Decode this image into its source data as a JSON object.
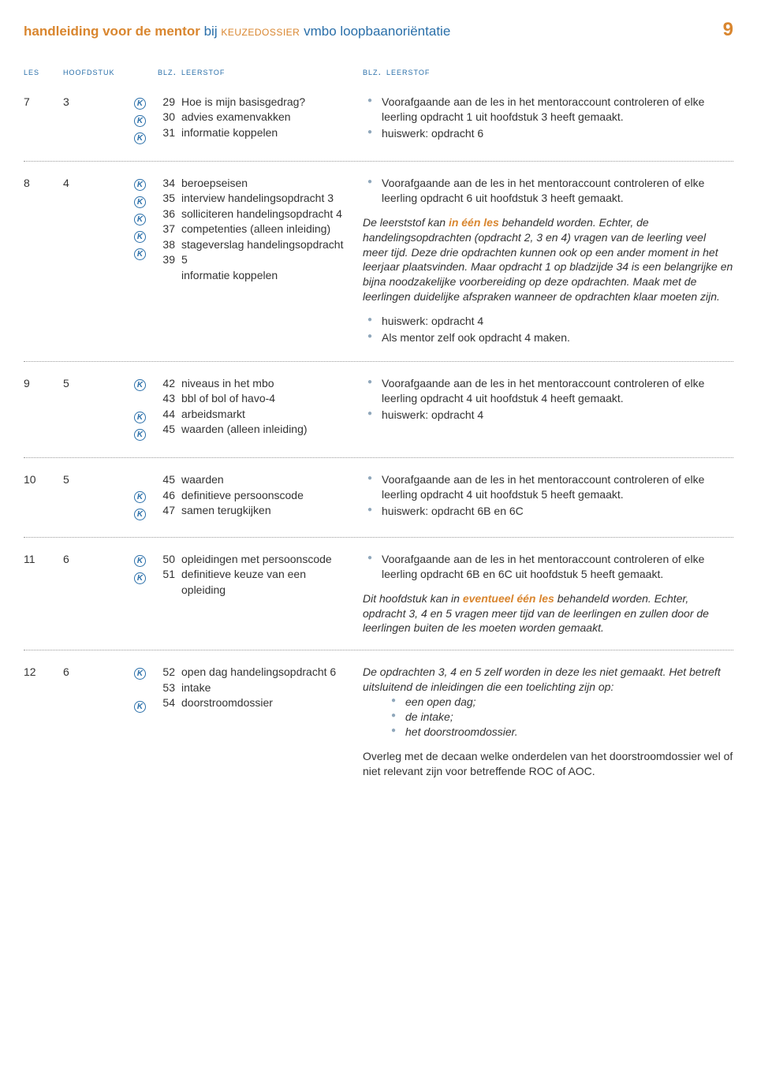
{
  "header": {
    "part1": "handleiding voor de mentor",
    "part2": " bij ",
    "part3": "keuzedossier",
    "part4": " vmbo loopbaanoriëntatie",
    "page_number": "9"
  },
  "columns": {
    "les": "les",
    "hoofdstuk": "hoofdstuk",
    "blz": "blz.",
    "leerstof": "leerstof"
  },
  "rows": [
    {
      "les": "7",
      "hoofd": "3",
      "items": [
        {
          "k": true,
          "page": "29",
          "topic": "Hoe is mijn basisgedrag?"
        },
        {
          "k": true,
          "page": "30",
          "topic": "advies examenvakken"
        },
        {
          "k": true,
          "page": "31",
          "topic": "informatie koppelen"
        }
      ],
      "right": {
        "bullets1": [
          "Voorafgaande aan de les in het mentoraccount controleren of elke leerling opdracht 1 uit hoofdstuk 3 heeft gemaakt.",
          "huiswerk: opdracht 6"
        ]
      }
    },
    {
      "les": "8",
      "hoofd": "4",
      "items": [
        {
          "k": true,
          "page": "34",
          "topic": "beroepseisen"
        },
        {
          "k": true,
          "page": "35",
          "topic": "interview handelingsopdracht 3"
        },
        {
          "k": true,
          "page": "36",
          "topic": "solliciteren handelingsopdracht 4"
        },
        {
          "k": true,
          "page": "37",
          "topic": "competenties (alleen inleiding)"
        },
        {
          "k": true,
          "page": "38",
          "topic": "stageverslag handelingsopdracht 5"
        },
        {
          "k": false,
          "page": "39",
          "topic": "informatie koppelen"
        }
      ],
      "right": {
        "bullets1": [
          "Voorafgaande aan de les in het mentoraccount controleren of elke leerling opdracht 6 uit hoofdstuk 3 heeft gemaakt."
        ],
        "italic1_pre": "De leerststof kan ",
        "italic1_em": "in één les",
        "italic1_post": " behandeld worden. Echter, de handelingsopdrachten (opdracht 2, 3 en 4) vragen van de leerling veel meer tijd. Deze drie opdrachten kunnen ook op een ander moment in het leerjaar plaatsvinden. Maar opdracht 1 op bladzijde 34 is een belangrijke en bijna noodzakelijke voorbereiding op deze opdrachten. Maak met de leerlingen duidelijke afspraken wanneer de opdrachten klaar moeten zijn.",
        "bullets2": [
          "huiswerk: opdracht 4",
          "Als mentor zelf ook opdracht 4 maken."
        ]
      }
    },
    {
      "les": "9",
      "hoofd": "5",
      "items": [
        {
          "k": true,
          "page": "42",
          "topic": "niveaus in het mbo"
        },
        {
          "k": false,
          "page": "43",
          "topic": "bbl of bol of havo-4"
        },
        {
          "k": true,
          "page": "44",
          "topic": "arbeidsmarkt"
        },
        {
          "k": true,
          "page": "45",
          "topic": "waarden (alleen inleiding)"
        }
      ],
      "right": {
        "bullets1": [
          "Voorafgaande aan de les in het mentoraccount controleren of elke leerling opdracht 4 uit hoofdstuk 4 heeft gemaakt.",
          "huiswerk: opdracht 4"
        ]
      }
    },
    {
      "les": "10",
      "hoofd": "5",
      "items": [
        {
          "k": false,
          "page": "45",
          "topic": "waarden"
        },
        {
          "k": true,
          "page": "46",
          "topic": "definitieve persoonscode"
        },
        {
          "k": true,
          "page": "47",
          "topic": "samen terugkijken"
        }
      ],
      "right": {
        "bullets1": [
          "Voorafgaande aan de les in het mentoraccount controleren of elke leerling opdracht 4 uit hoofdstuk 5 heeft gemaakt.",
          "huiswerk: opdracht 6B en 6C"
        ]
      }
    },
    {
      "les": "11",
      "hoofd": "6",
      "items": [
        {
          "k": true,
          "page": "50",
          "topic": "opleidingen met persoonscode"
        },
        {
          "k": true,
          "page": "51",
          "topic": "definitieve keuze van een opleiding"
        }
      ],
      "right": {
        "bullets1": [
          "Voorafgaande aan de les in het mentoraccount controleren of elke leerling opdracht 6B en 6C uit hoofdstuk 5 heeft gemaakt."
        ],
        "italic1_pre": "Dit hoofdstuk kan in ",
        "italic1_em": "eventueel één les",
        "italic1_post": " behandeld worden. Echter, opdracht 3, 4 en 5 vragen meer tijd van de leerlingen en zullen door de leerlingen buiten de les moeten worden gemaakt."
      }
    },
    {
      "les": "12",
      "hoofd": "6",
      "items": [
        {
          "k": true,
          "page": "52",
          "topic": "open dag handelingsopdracht 6"
        },
        {
          "k": false,
          "page": "53",
          "topic": "intake"
        },
        {
          "k": true,
          "page": "54",
          "topic": "doorstroomdossier"
        }
      ],
      "right": {
        "italic_lead": "De opdrachten 3, 4 en 5 zelf worden in deze les niet gemaakt. Het betreft uitsluitend de inleidingen die een toelichting zijn op:",
        "indent_bullets": [
          "een open dag;",
          "de intake;",
          "het doorstroomdossier."
        ],
        "plain_after": "Overleg met de decaan welke onderdelen van het doorstroomdossier wel of niet relevant zijn voor betreffende ROC of AOC."
      }
    }
  ]
}
